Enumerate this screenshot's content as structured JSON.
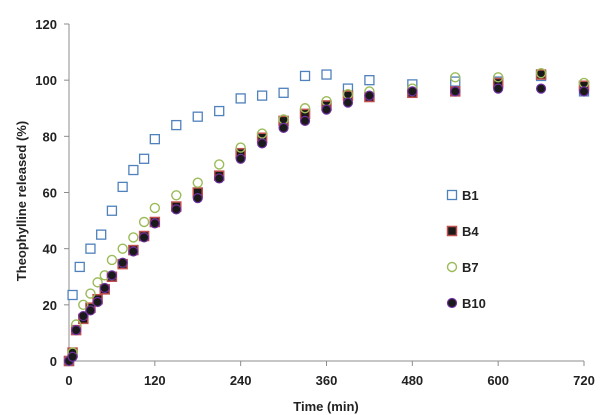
{
  "chart_data": {
    "type": "scatter",
    "title": "",
    "xlabel": "Time (min)",
    "ylabel": "Theophylline released (%)",
    "xlim": [
      0,
      720
    ],
    "ylim": [
      0,
      120
    ],
    "xticks": [
      0,
      120,
      240,
      360,
      480,
      600,
      720
    ],
    "yticks": [
      0,
      20,
      40,
      60,
      80,
      100,
      120
    ],
    "grid": false,
    "legend_position": "right",
    "series": [
      {
        "name": "B1",
        "marker": "open-square",
        "color": "#4F81BD",
        "fill": "none",
        "x": [
          0,
          5,
          15,
          30,
          45,
          60,
          75,
          90,
          105,
          120,
          150,
          180,
          210,
          240,
          270,
          300,
          330,
          360,
          390,
          420,
          480,
          540,
          600,
          660,
          720
        ],
        "y": [
          0,
          23.5,
          33.5,
          40,
          45,
          53.5,
          62,
          68,
          72,
          79,
          84,
          87,
          89,
          93.5,
          94.5,
          95.5,
          101.5,
          102,
          97,
          100,
          98.5,
          99.5,
          99.5,
          101.5,
          96
        ]
      },
      {
        "name": "B4",
        "marker": "filled-square",
        "color": "#C0504D",
        "fill": "#1a1a1a",
        "x": [
          0,
          5,
          10,
          20,
          30,
          40,
          50,
          60,
          75,
          90,
          105,
          120,
          150,
          180,
          210,
          240,
          270,
          300,
          330,
          360,
          390,
          420,
          480,
          540,
          600,
          660,
          720
        ],
        "y": [
          0,
          3,
          11,
          15,
          19,
          22,
          25.5,
          30,
          34.5,
          39.5,
          44.5,
          49.5,
          55,
          60,
          66,
          74,
          79.5,
          85.5,
          88,
          91,
          94.5,
          94,
          95.5,
          96,
          99,
          102,
          98
        ]
      },
      {
        "name": "B7",
        "marker": "open-circle",
        "color": "#9BBB59",
        "fill": "none",
        "x": [
          0,
          5,
          10,
          20,
          30,
          40,
          50,
          60,
          75,
          90,
          105,
          120,
          150,
          180,
          210,
          240,
          270,
          300,
          330,
          360,
          390,
          420,
          480,
          540,
          600,
          660,
          720
        ],
        "y": [
          0,
          3,
          13,
          20,
          24,
          28,
          30.5,
          36,
          40,
          44,
          49.5,
          54.5,
          59,
          63.5,
          70,
          76,
          81,
          86,
          90,
          92.5,
          95,
          96,
          97,
          101,
          101,
          102.5,
          99
        ]
      },
      {
        "name": "B10",
        "marker": "filled-circle",
        "color": "#7030A0",
        "fill": "#1a1a1a",
        "x": [
          0,
          5,
          10,
          20,
          30,
          40,
          50,
          60,
          75,
          90,
          105,
          120,
          150,
          180,
          210,
          240,
          270,
          300,
          330,
          360,
          390,
          420,
          480,
          540,
          600,
          660,
          720
        ],
        "y": [
          0,
          1.5,
          11,
          16,
          18,
          21,
          26,
          30.5,
          35,
          39,
          44,
          49,
          54,
          58,
          65,
          72,
          77.5,
          83,
          85.5,
          89.5,
          92,
          94.5,
          96,
          96,
          97,
          97,
          96
        ]
      }
    ]
  }
}
